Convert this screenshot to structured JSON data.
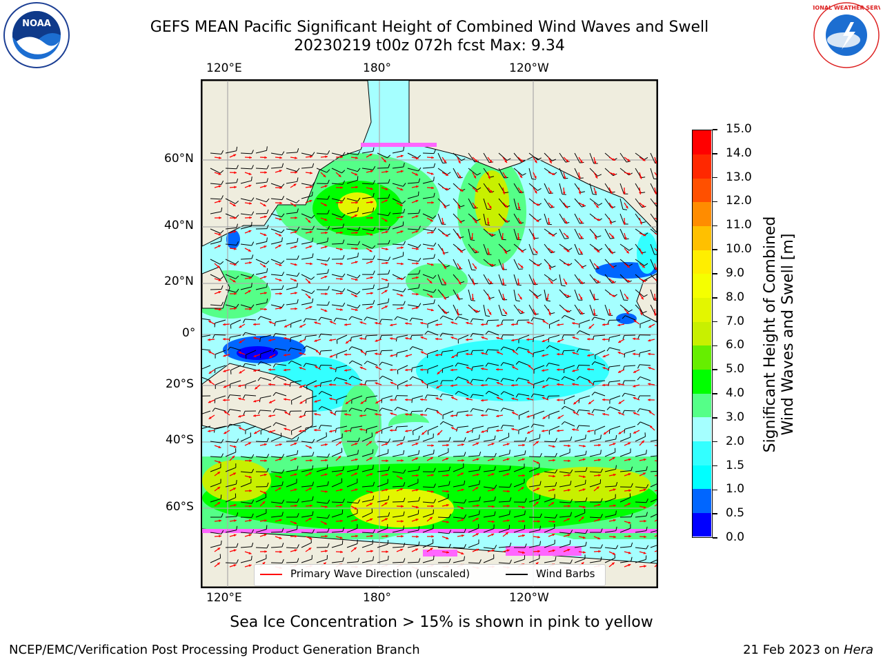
{
  "title_line1": "GEFS MEAN Pacific Significant Height of Combined Wind Waves and Swell",
  "title_line2": "20230219 t00z 072h fcst   Max: 9.34",
  "lon_ticks_top": [
    "120°E",
    "180°",
    "120°W"
  ],
  "lon_ticks_bottom": [
    "120°E",
    "180°",
    "120°W"
  ],
  "lat_ticks": [
    "60°N",
    "40°N",
    "20°N",
    "0°",
    "20°S",
    "40°S",
    "60°S"
  ],
  "colorbar": {
    "label_line1": "Significant Height of Combined",
    "label_line2": "Wind Waves and Swell [m]",
    "ticks": [
      "0.0",
      "0.5",
      "1.0",
      "1.5",
      "2.0",
      "3.0",
      "4.0",
      "5.0",
      "6.0",
      "7.0",
      "8.0",
      "9.0",
      "10.0",
      "11.0",
      "12.0",
      "13.0",
      "14.0",
      "15.0"
    ],
    "colors": [
      "#0000ff",
      "#0066ff",
      "#00ffff",
      "#33ffff",
      "#a5ffff",
      "#55ff88",
      "#00ff00",
      "#66ee00",
      "#c8f000",
      "#e3f600",
      "#f5ff00",
      "#ffee00",
      "#ffc000",
      "#ff8c00",
      "#ff5000",
      "#ff2800",
      "#ff0000"
    ]
  },
  "legend": {
    "wave_dir_label": "Primary Wave Direction (unscaled)",
    "wind_barbs_label": "Wind Barbs"
  },
  "sea_ice_note": "Sea Ice Concentration > 15% is shown in pink to yellow",
  "footer_left": "NCEP/EMC/Verification Post Processing Product Generation Branch",
  "footer_right_date": "21 Feb 2023 on ",
  "footer_right_host": "Hera",
  "logos": {
    "left": "noaa-logo",
    "right": "nws-logo"
  },
  "logo_text": {
    "noaa": "NOAA",
    "nws": "NATIONAL WEATHER SERVICE"
  }
}
